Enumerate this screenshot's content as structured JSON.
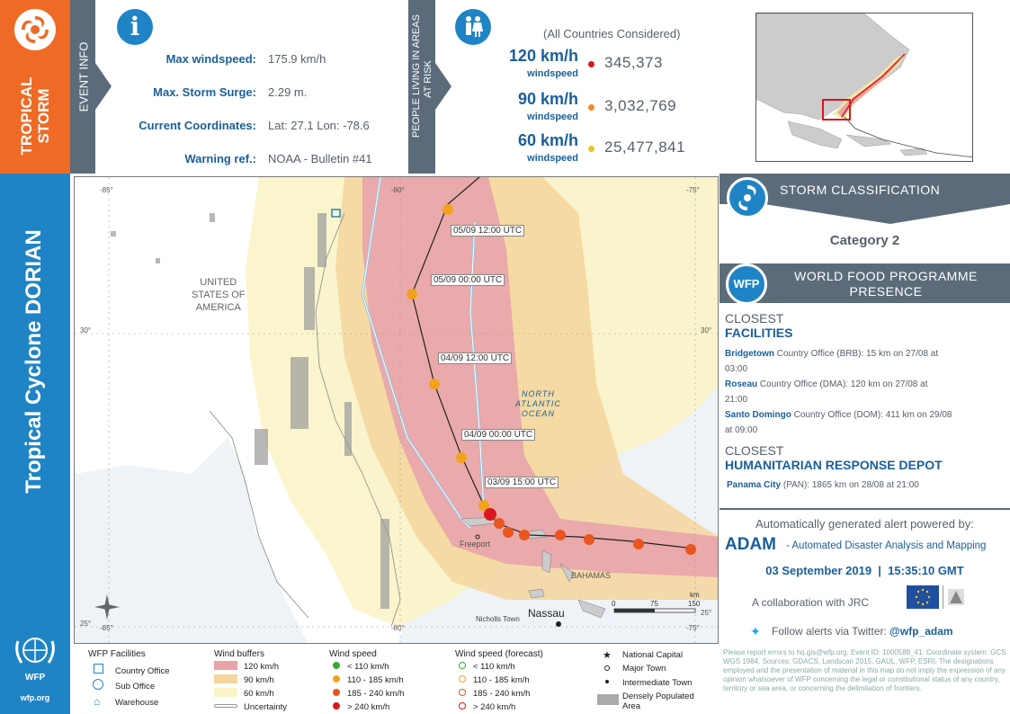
{
  "left_bar": {
    "top_label_line1": "TROPICAL",
    "top_label_line2": "STORM",
    "title": "Tropical Cyclone DORIAN",
    "wfp_logo_text": "WFP",
    "wfp_url": "wfp.org"
  },
  "event_info": {
    "section_label": "EVENT INFO",
    "rows": [
      {
        "label": "Max windspeed:",
        "value": "175.9 km/h"
      },
      {
        "label": "Max. Storm Surge:",
        "value": "2.29 m."
      },
      {
        "label": "Current Coordinates:",
        "value": "Lat: 27.1 Lon: -78.6"
      },
      {
        "label": "Warning ref.:",
        "value": "NOAA - Bulletin #41"
      }
    ]
  },
  "population": {
    "section_label_line1": "PEOPLE LIVING IN AREAS",
    "section_label_line2": "AT RISK",
    "note": "(All Countries Considered)",
    "rows": [
      {
        "speed": "120",
        "unit": "km/h",
        "sub": "windspeed",
        "value": "345,373",
        "color": "#d7191c"
      },
      {
        "speed": "90",
        "unit": "km/h",
        "sub": "windspeed",
        "value": "3,032,769",
        "color": "#f08a24"
      },
      {
        "speed": "60",
        "unit": "km/h",
        "sub": "windspeed",
        "value": "25,477,841",
        "color": "#e8c81e"
      }
    ]
  },
  "storm_class": {
    "title": "STORM CLASSIFICATION",
    "category": "Category 2"
  },
  "wfp_presence": {
    "badge": "WFP",
    "title_line1": "WORLD FOOD PROGRAMME",
    "title_line2": "PRESENCE",
    "closest_facilities_line1": "CLOSEST",
    "closest_facilities_line2": "FACILITIES",
    "facilities": [
      {
        "name": "Bridgetown",
        "detail": "Country Office (BRB): 15 km on 27/08 at",
        "detail2": "03:00"
      },
      {
        "name": "Roseau",
        "detail": "Country Office (DMA): 120 km on 27/08 at",
        "detail2": "21:00"
      },
      {
        "name": "Santo Domingo",
        "detail": "Country Office (DOM): 411 km on 29/08",
        "detail2": "at 09:00"
      }
    ],
    "closest_depot_line1": "CLOSEST",
    "closest_depot_line2": "HUMANITARIAN RESPONSE DEPOT",
    "depot_name": "Panama City",
    "depot_detail": "(PAN): 1865 km on 28/08 at 21:00"
  },
  "adam": {
    "powered_by": "Automatically generated alert powered by:",
    "name": "ADAM",
    "full_name": "- Automated Disaster Analysis and Mapping",
    "date": "03 September 2019",
    "time": "15:35:10 GMT",
    "collab": "A collaboration with JRC",
    "twitter_text": "Follow alerts via Twitter:",
    "twitter_handle": "@wfp_adam"
  },
  "map": {
    "labels": {
      "usa": [
        "UNITED",
        "STATES OF",
        "AMERICA"
      ],
      "ocean": [
        "NORTH",
        "ATLANTIC",
        "OCEAN"
      ],
      "freeport": "Freeport",
      "bahamas": "BAHAMAS",
      "nassau": "Nassau",
      "nicholls": "Nicholls Town"
    },
    "grid_labels": {
      "top": [
        "-85°",
        "-80°",
        "-75°"
      ],
      "bottom": [
        "-85°",
        "-80°",
        "-75°"
      ],
      "left": [
        "30°",
        "25°"
      ],
      "right": [
        "30°",
        "25°"
      ]
    },
    "track_labels": [
      "05/09 12:00 UTC",
      "05/09 00:00 UTC",
      "04/09 12:00 UTC",
      "04/09 00:00 UTC",
      "03/09 15:00 UTC"
    ],
    "scale": {
      "t0": "0",
      "t1": "75",
      "t2": "150",
      "unit": "km"
    }
  },
  "legend": {
    "facilities_title": "WFP Facilities",
    "facilities": [
      "Country Office",
      "Sub Office",
      "Warehouse"
    ],
    "buffers_title": "Wind buffers",
    "buffers": [
      {
        "label": "120 km/h",
        "color": "#e9a3ab"
      },
      {
        "label": "90 km/h",
        "color": "#f5d59c"
      },
      {
        "label": "60 km/h",
        "color": "#f9f4c7"
      },
      {
        "label": "Uncertainty",
        "color": "#ffffff"
      }
    ],
    "wind_title": "Wind speed",
    "wind": [
      {
        "label": "< 110 km/h",
        "color": "#3aa63a"
      },
      {
        "label": "110 - 185 km/h",
        "color": "#f2a21c"
      },
      {
        "label": "185 - 240 km/h",
        "color": "#e8561e"
      },
      {
        "label": "> 240 km/h",
        "color": "#d7191c"
      }
    ],
    "forecast_title": "Wind speed (forecast)",
    "forecast": [
      "< 110 km/h",
      "110 - 185 km/h",
      "185 - 240 km/h",
      "> 240 km/h"
    ],
    "places": [
      "National Capital",
      "Major Town",
      "Intermediate Town",
      "Densely Populated Area"
    ]
  },
  "disclaimer": "Please report errors to hq.gis@wfp.org. Event ID: 1000588_41. Coordinate system: GCS WGS 1984. Sources: GDACS, Landscan 2015, GAUL, WFP, ESRI. The designations employed and the presentation of material in this map do not imply the expression of any opinion whatsoever of WFP concerning the legal or constitutional status of any country, territory or sea area, or concerning the delimitation of frontiers."
}
